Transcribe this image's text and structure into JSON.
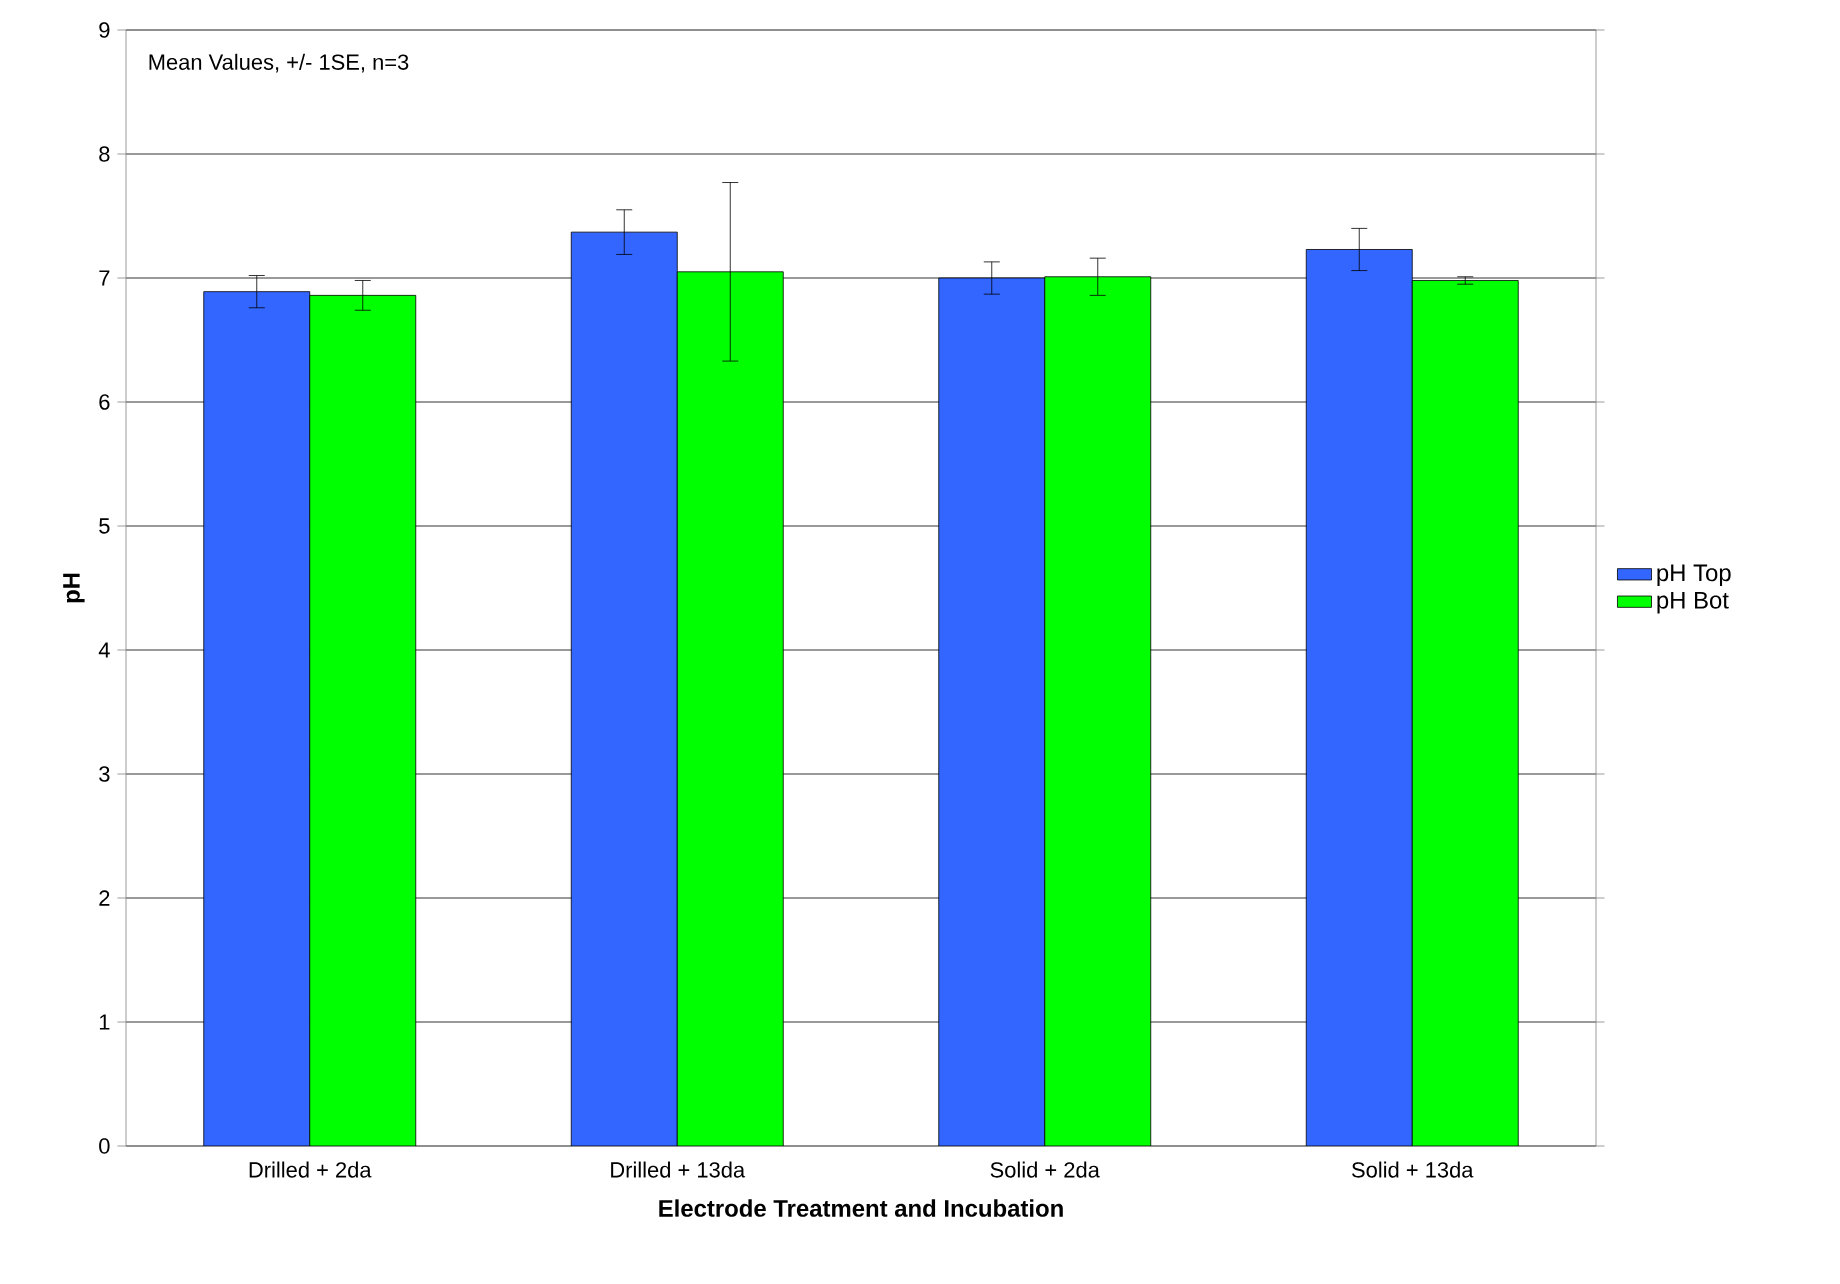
{
  "chart_data": {
    "type": "bar",
    "categories": [
      "Drilled + 2da",
      "Drilled + 13da",
      "Solid + 2da",
      "Solid + 13da"
    ],
    "series": [
      {
        "name": "pH Top",
        "color": "#3366ff",
        "values": [
          6.89,
          7.37,
          7.0,
          7.23
        ],
        "errors": [
          0.13,
          0.18,
          0.13,
          0.17
        ]
      },
      {
        "name": "pH Bot",
        "color": "#00ff00",
        "values": [
          6.86,
          7.05,
          7.01,
          6.98
        ],
        "errors": [
          0.12,
          0.72,
          0.15,
          0.03
        ]
      }
    ],
    "xlabel": "Electrode Treatment and Incubation",
    "ylabel": "pH",
    "annotations": [
      "Mean Values, +/- 1SE, n=3"
    ],
    "ylim": [
      0,
      9
    ],
    "yticks": [
      0,
      1,
      2,
      3,
      4,
      5,
      6,
      7,
      8,
      9
    ],
    "grid": "y",
    "legend": "right"
  }
}
